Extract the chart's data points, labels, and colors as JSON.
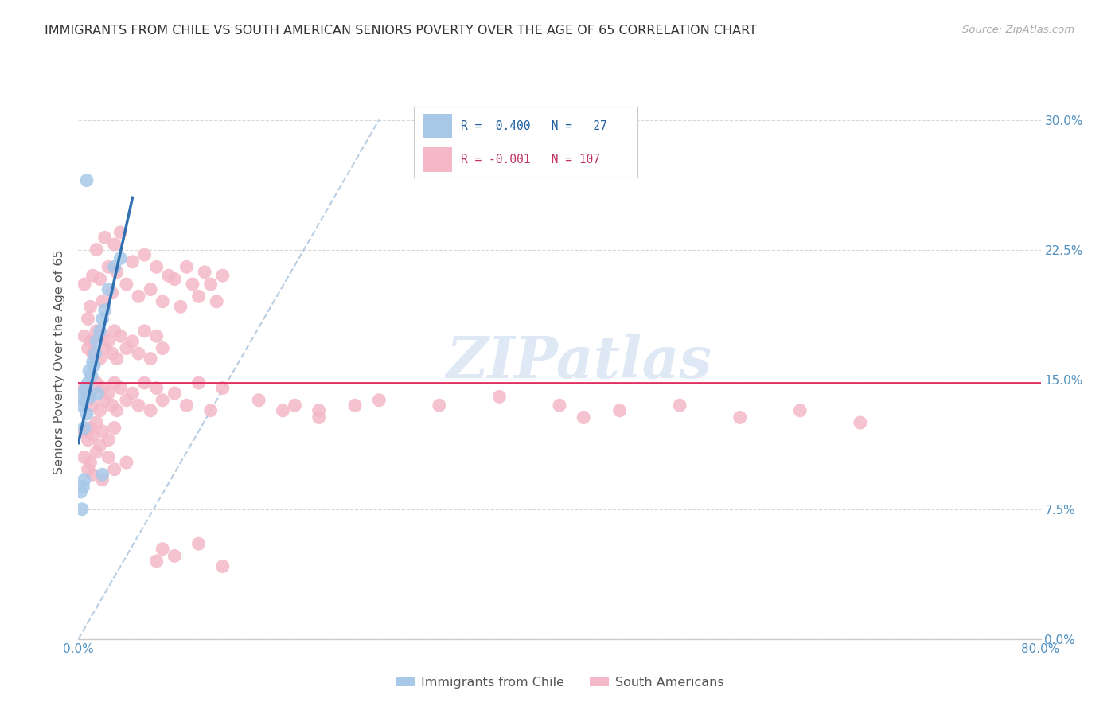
{
  "title": "IMMIGRANTS FROM CHILE VS SOUTH AMERICAN SENIORS POVERTY OVER THE AGE OF 65 CORRELATION CHART",
  "source": "Source: ZipAtlas.com",
  "ylabel_label": "Seniors Poverty Over the Age of 65",
  "xlim": [
    0,
    80
  ],
  "ylim": [
    0,
    32
  ],
  "ylabel_vals": [
    0,
    7.5,
    15.0,
    22.5,
    30.0
  ],
  "ylabel_ticks": [
    "0.0%",
    "7.5%",
    "15.0%",
    "22.5%",
    "30.0%"
  ],
  "xlabel_vals": [
    0,
    10,
    20,
    30,
    40,
    50,
    60,
    70,
    80
  ],
  "xlabel_ticks": [
    "0.0%",
    "",
    "",
    "",
    "",
    "",
    "",
    "",
    "80.0%"
  ],
  "watermark": "ZIPatlas",
  "blue_color": "#a8c8e8",
  "pink_color": "#f4b8c8",
  "blue_line_color": "#3070b0",
  "pink_line_color": "#e03060",
  "grid_color": "#d8d8d8",
  "tick_color": "#5090c0",
  "ref_line_color": "#b0c8e0",
  "pink_line_y": 14.8,
  "chile_scatter": [
    [
      0.3,
      13.5
    ],
    [
      0.4,
      14.2
    ],
    [
      0.5,
      13.8
    ],
    [
      0.5,
      12.2
    ],
    [
      0.6,
      14.5
    ],
    [
      0.7,
      13.0
    ],
    [
      0.8,
      14.8
    ],
    [
      0.9,
      15.5
    ],
    [
      1.0,
      14.0
    ],
    [
      1.1,
      15.2
    ],
    [
      1.2,
      16.0
    ],
    [
      1.3,
      15.8
    ],
    [
      1.4,
      16.5
    ],
    [
      1.5,
      17.2
    ],
    [
      1.6,
      14.2
    ],
    [
      1.8,
      17.8
    ],
    [
      2.0,
      18.5
    ],
    [
      2.2,
      19.0
    ],
    [
      2.5,
      20.2
    ],
    [
      3.0,
      21.5
    ],
    [
      0.2,
      8.5
    ],
    [
      0.3,
      7.5
    ],
    [
      0.4,
      8.8
    ],
    [
      0.5,
      9.2
    ],
    [
      2.0,
      9.5
    ],
    [
      0.7,
      26.5
    ],
    [
      3.5,
      22.0
    ]
  ],
  "sa_scatter": [
    [
      0.5,
      20.5
    ],
    [
      0.8,
      18.5
    ],
    [
      1.0,
      19.2
    ],
    [
      1.2,
      21.0
    ],
    [
      1.5,
      22.5
    ],
    [
      1.8,
      20.8
    ],
    [
      2.0,
      19.5
    ],
    [
      2.2,
      23.2
    ],
    [
      2.5,
      21.5
    ],
    [
      2.8,
      20.0
    ],
    [
      3.0,
      22.8
    ],
    [
      3.2,
      21.2
    ],
    [
      3.5,
      23.5
    ],
    [
      4.0,
      20.5
    ],
    [
      4.5,
      21.8
    ],
    [
      5.0,
      19.8
    ],
    [
      5.5,
      22.2
    ],
    [
      6.0,
      20.2
    ],
    [
      6.5,
      21.5
    ],
    [
      7.0,
      19.5
    ],
    [
      7.5,
      21.0
    ],
    [
      8.0,
      20.8
    ],
    [
      8.5,
      19.2
    ],
    [
      9.0,
      21.5
    ],
    [
      9.5,
      20.5
    ],
    [
      10.0,
      19.8
    ],
    [
      10.5,
      21.2
    ],
    [
      11.0,
      20.5
    ],
    [
      11.5,
      19.5
    ],
    [
      12.0,
      21.0
    ],
    [
      0.5,
      17.5
    ],
    [
      0.8,
      16.8
    ],
    [
      1.0,
      17.2
    ],
    [
      1.2,
      16.5
    ],
    [
      1.5,
      17.8
    ],
    [
      1.8,
      16.2
    ],
    [
      2.0,
      17.5
    ],
    [
      2.2,
      16.8
    ],
    [
      2.5,
      17.2
    ],
    [
      2.8,
      16.5
    ],
    [
      3.0,
      17.8
    ],
    [
      3.2,
      16.2
    ],
    [
      3.5,
      17.5
    ],
    [
      4.0,
      16.8
    ],
    [
      4.5,
      17.2
    ],
    [
      5.0,
      16.5
    ],
    [
      5.5,
      17.8
    ],
    [
      6.0,
      16.2
    ],
    [
      6.5,
      17.5
    ],
    [
      7.0,
      16.8
    ],
    [
      0.5,
      14.5
    ],
    [
      0.8,
      13.8
    ],
    [
      1.0,
      14.2
    ],
    [
      1.2,
      13.5
    ],
    [
      1.5,
      14.8
    ],
    [
      1.8,
      13.2
    ],
    [
      2.0,
      14.5
    ],
    [
      2.2,
      13.8
    ],
    [
      2.5,
      14.2
    ],
    [
      2.8,
      13.5
    ],
    [
      3.0,
      14.8
    ],
    [
      3.2,
      13.2
    ],
    [
      3.5,
      14.5
    ],
    [
      4.0,
      13.8
    ],
    [
      4.5,
      14.2
    ],
    [
      5.0,
      13.5
    ],
    [
      5.5,
      14.8
    ],
    [
      6.0,
      13.2
    ],
    [
      6.5,
      14.5
    ],
    [
      7.0,
      13.8
    ],
    [
      8.0,
      14.2
    ],
    [
      9.0,
      13.5
    ],
    [
      10.0,
      14.8
    ],
    [
      11.0,
      13.2
    ],
    [
      12.0,
      14.5
    ],
    [
      0.5,
      12.0
    ],
    [
      0.8,
      11.5
    ],
    [
      1.0,
      12.2
    ],
    [
      1.2,
      11.8
    ],
    [
      1.5,
      12.5
    ],
    [
      1.8,
      11.2
    ],
    [
      2.0,
      12.0
    ],
    [
      2.5,
      11.5
    ],
    [
      3.0,
      12.2
    ],
    [
      0.5,
      10.5
    ],
    [
      0.8,
      9.8
    ],
    [
      1.0,
      10.2
    ],
    [
      1.2,
      9.5
    ],
    [
      1.5,
      10.8
    ],
    [
      2.0,
      9.2
    ],
    [
      2.5,
      10.5
    ],
    [
      3.0,
      9.8
    ],
    [
      4.0,
      10.2
    ],
    [
      15.0,
      13.8
    ],
    [
      18.0,
      13.5
    ],
    [
      20.0,
      13.2
    ],
    [
      25.0,
      13.8
    ],
    [
      30.0,
      13.5
    ],
    [
      35.0,
      14.0
    ],
    [
      40.0,
      13.5
    ],
    [
      42.0,
      12.8
    ],
    [
      45.0,
      13.2
    ],
    [
      50.0,
      13.5
    ],
    [
      55.0,
      12.8
    ],
    [
      60.0,
      13.2
    ],
    [
      65.0,
      12.5
    ],
    [
      6.5,
      4.5
    ],
    [
      7.0,
      5.2
    ],
    [
      8.0,
      4.8
    ],
    [
      10.0,
      5.5
    ],
    [
      12.0,
      4.2
    ],
    [
      17.0,
      13.2
    ],
    [
      20.0,
      12.8
    ],
    [
      23.0,
      13.5
    ]
  ]
}
